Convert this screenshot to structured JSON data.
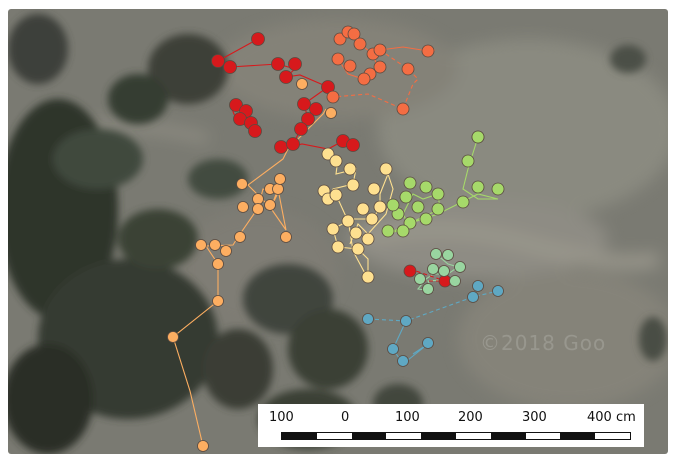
{
  "map": {
    "watermark": "©2018 Goo",
    "scale_bar": {
      "labels": [
        "100",
        "0",
        "100",
        "200",
        "300",
        "400 cm"
      ]
    },
    "track_colors": {
      "red": "#d7191c",
      "orange_dark": "#f46d43",
      "orange": "#fdae61",
      "light_orange": "#fee090",
      "light_green": "#a6d96a",
      "sage_green": "#99d5a0",
      "teal_blue": "#5fa8c3"
    }
  }
}
